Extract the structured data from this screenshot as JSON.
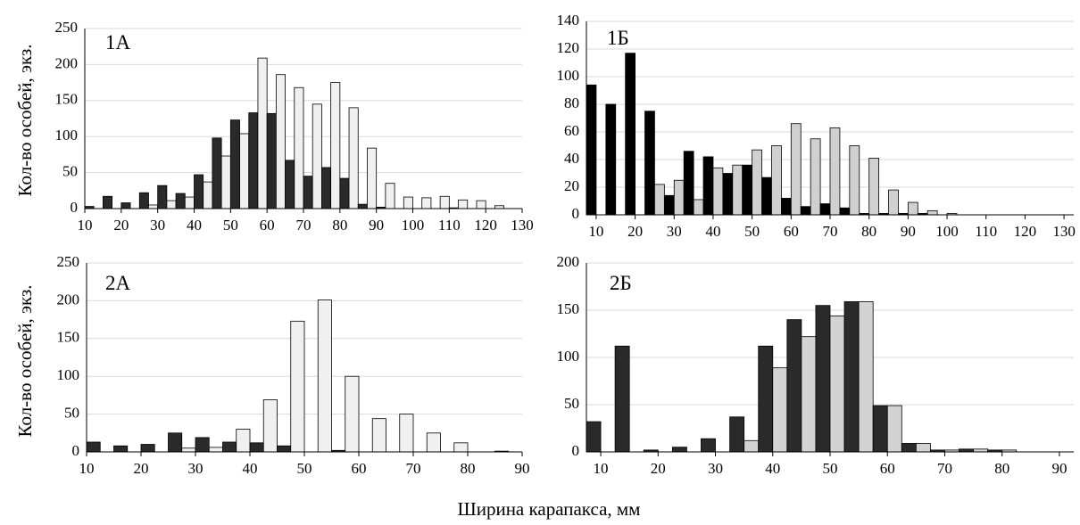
{
  "figure": {
    "xlabel": "Ширина карапакса, мм",
    "ylabel": "Кол-во особей, экз."
  },
  "chart_data": [
    {
      "type": "bar",
      "panel": "1A",
      "title": "1А",
      "ylim": [
        0,
        250
      ],
      "yticks": [
        0,
        50,
        100,
        150,
        200,
        250
      ],
      "xlim": [
        10,
        130
      ],
      "xticks": [
        10,
        20,
        30,
        40,
        50,
        60,
        70,
        80,
        90,
        100,
        110,
        120,
        130
      ],
      "bin_width": 5,
      "x": [
        12.5,
        17.5,
        22.5,
        27.5,
        32.5,
        37.5,
        42.5,
        47.5,
        52.5,
        57.5,
        62.5,
        67.5,
        72.5,
        77.5,
        82.5,
        87.5,
        92.5,
        97.5,
        102.5,
        107.5,
        112.5,
        117.5,
        122.5,
        127.5
      ],
      "series": [
        {
          "color": "#2a2a2a",
          "values": [
            3,
            17,
            8,
            22,
            32,
            21,
            47,
            98,
            123,
            133,
            132,
            67,
            45,
            57,
            42,
            6,
            2,
            0,
            0,
            0,
            1,
            0,
            0,
            0
          ]
        },
        {
          "color": "#f0f0f0",
          "values": [
            0,
            0,
            0,
            5,
            11,
            16,
            37,
            73,
            104,
            209,
            186,
            168,
            145,
            175,
            140,
            84,
            35,
            16,
            15,
            17,
            12,
            11,
            4,
            0
          ]
        }
      ],
      "grid": true
    },
    {
      "type": "bar",
      "panel": "1B",
      "title": "1Б",
      "ylim": [
        0,
        140
      ],
      "yticks": [
        0,
        20,
        40,
        60,
        80,
        100,
        120,
        140
      ],
      "xlim": [
        7.5,
        132.5
      ],
      "xticks": [
        10,
        20,
        30,
        40,
        50,
        60,
        70,
        80,
        90,
        100,
        110,
        120,
        130
      ],
      "bin_width": 5,
      "x": [
        10,
        15,
        20,
        25,
        30,
        35,
        40,
        45,
        50,
        55,
        60,
        65,
        70,
        75,
        80,
        85,
        90,
        95,
        100,
        105,
        110,
        115,
        120,
        125,
        130
      ],
      "series": [
        {
          "color": "#000000",
          "values": [
            94,
            80,
            117,
            75,
            14,
            46,
            42,
            30,
            36,
            27,
            12,
            6,
            8,
            5,
            1,
            1,
            1,
            1,
            0,
            0,
            0,
            0,
            0,
            0,
            0
          ]
        },
        {
          "color": "#d0d0d0",
          "values": [
            0,
            0,
            0,
            22,
            25,
            11,
            34,
            36,
            47,
            50,
            66,
            55,
            63,
            50,
            41,
            18,
            9,
            3,
            1,
            0,
            0,
            0,
            0,
            0,
            0
          ]
        }
      ],
      "grid": true
    },
    {
      "type": "bar",
      "panel": "2A",
      "title": "2А",
      "ylim": [
        0,
        250
      ],
      "yticks": [
        0,
        50,
        100,
        150,
        200,
        250
      ],
      "xlim": [
        10,
        90
      ],
      "xticks": [
        10,
        20,
        30,
        40,
        50,
        60,
        70,
        80,
        90
      ],
      "bin_width": 5,
      "x": [
        12.5,
        17.5,
        22.5,
        27.5,
        32.5,
        37.5,
        42.5,
        47.5,
        52.5,
        57.5,
        62.5,
        67.5,
        72.5,
        77.5,
        82.5,
        87.5
      ],
      "series": [
        {
          "color": "#2a2a2a",
          "values": [
            13,
            8,
            10,
            25,
            19,
            13,
            12,
            8,
            0,
            2,
            0,
            0,
            0,
            0,
            0,
            1
          ]
        },
        {
          "color": "#f0f0f0",
          "values": [
            0,
            0,
            0,
            5,
            6,
            30,
            69,
            173,
            201,
            100,
            44,
            50,
            25,
            12,
            0,
            0
          ]
        }
      ],
      "grid": true
    },
    {
      "type": "bar",
      "panel": "2B",
      "title": "2Б",
      "ylim": [
        0,
        200
      ],
      "yticks": [
        0,
        50,
        100,
        150,
        200
      ],
      "xlim": [
        7.5,
        92.5
      ],
      "xticks": [
        10,
        20,
        30,
        40,
        50,
        60,
        70,
        80,
        90
      ],
      "bin_width": 5,
      "x": [
        10,
        15,
        20,
        25,
        30,
        35,
        40,
        45,
        50,
        55,
        60,
        65,
        70,
        75,
        80,
        85,
        90
      ],
      "series": [
        {
          "color": "#2a2a2a",
          "values": [
            32,
            112,
            2,
            5,
            14,
            37,
            112,
            140,
            155,
            159,
            49,
            9,
            2,
            3,
            2,
            0,
            0
          ]
        },
        {
          "color": "#d3d3d3",
          "values": [
            0,
            0,
            0,
            0,
            0,
            12,
            89,
            122,
            144,
            159,
            49,
            9,
            2,
            3,
            2,
            0,
            0
          ]
        }
      ],
      "grid": true
    }
  ]
}
